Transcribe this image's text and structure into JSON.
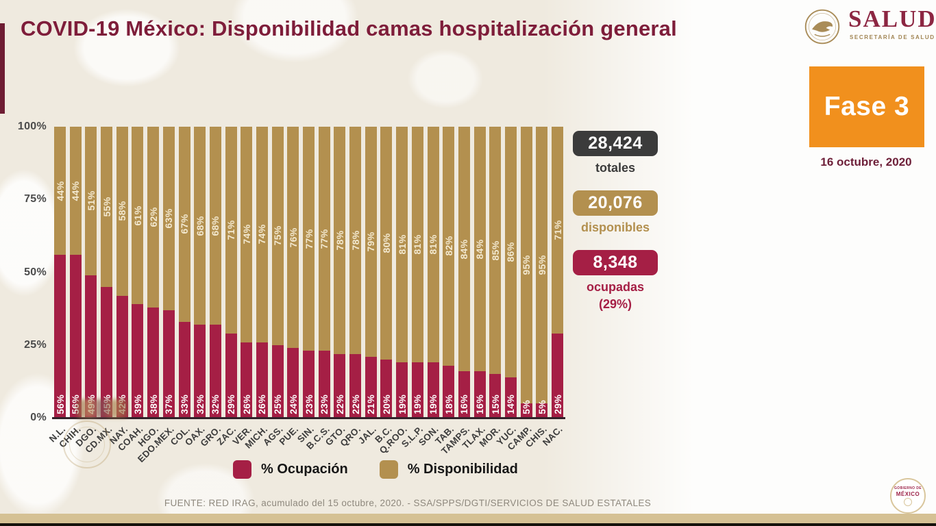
{
  "header": {
    "title": "COVID-19 México: Disponibilidad camas hospitalización general",
    "logo_name": "SALUD",
    "logo_subtitle": "SECRETARÍA DE SALUD",
    "fase_badge": "Fase 3",
    "date": "16 octubre, 2020"
  },
  "stats": [
    {
      "value": "28,424",
      "label": "totales",
      "color": "#3b3b3b"
    },
    {
      "value": "20,076",
      "label": "disponibles",
      "color": "#b3904f"
    },
    {
      "value": "8,348",
      "label": "ocupadas",
      "sublabel": "(29%)",
      "color": "#a51f45"
    }
  ],
  "chart_data": {
    "type": "bar",
    "stacked": true,
    "title": "COVID-19 México: Disponibilidad camas hospitalización general",
    "xlabel": "",
    "ylabel": "",
    "ylim": [
      0,
      100
    ],
    "grid": false,
    "legend_position": "bottom",
    "y_ticks": [
      "100%",
      "75%",
      "50%",
      "25%",
      "0%"
    ],
    "categories": [
      "N.L.",
      "CHIH.",
      "DGO.",
      "CD.MX.",
      "NAY.",
      "COAH.",
      "HGO.",
      "EDO.MEX.",
      "COL.",
      "OAX.",
      "GRO.",
      "ZAC.",
      "VER.",
      "MICH.",
      "AGS.",
      "PUE.",
      "SIN.",
      "B.C.S.",
      "GTO.",
      "QRO.",
      "JAL.",
      "B.C.",
      "Q.ROO.",
      "S.L.P.",
      "SON.",
      "TAB.",
      "TAMPS.",
      "TLAX.",
      "MOR.",
      "YUC.",
      "CAMP.",
      "CHIS.",
      "NAC."
    ],
    "series": [
      {
        "name": "% Ocupación",
        "color": "#a51f45",
        "values": [
          56,
          56,
          49,
          45,
          42,
          39,
          38,
          37,
          33,
          32,
          32,
          29,
          26,
          26,
          25,
          24,
          23,
          23,
          22,
          22,
          21,
          20,
          19,
          19,
          19,
          18,
          16,
          16,
          15,
          14,
          5,
          5,
          29
        ]
      },
      {
        "name": "% Disponibilidad",
        "color": "#b3904f",
        "values": [
          44,
          44,
          51,
          55,
          58,
          61,
          62,
          63,
          67,
          68,
          68,
          71,
          74,
          74,
          75,
          76,
          77,
          77,
          78,
          78,
          79,
          80,
          81,
          81,
          81,
          82,
          84,
          84,
          85,
          86,
          95,
          95,
          71
        ]
      }
    ]
  },
  "legend": [
    {
      "label": "% Ocupación",
      "color": "#a51f45"
    },
    {
      "label": "% Disponibilidad",
      "color": "#b3904f"
    }
  ],
  "footer": {
    "source": "FUENTE: RED IRAG, acumulado del 15 octubre, 2020. -  SSA/SPPS/DGTI/SERVICIOS DE SALUD ESTATALES"
  },
  "seal": {
    "line1": "GOBIERNO DE",
    "line2": "MÉXICO"
  }
}
